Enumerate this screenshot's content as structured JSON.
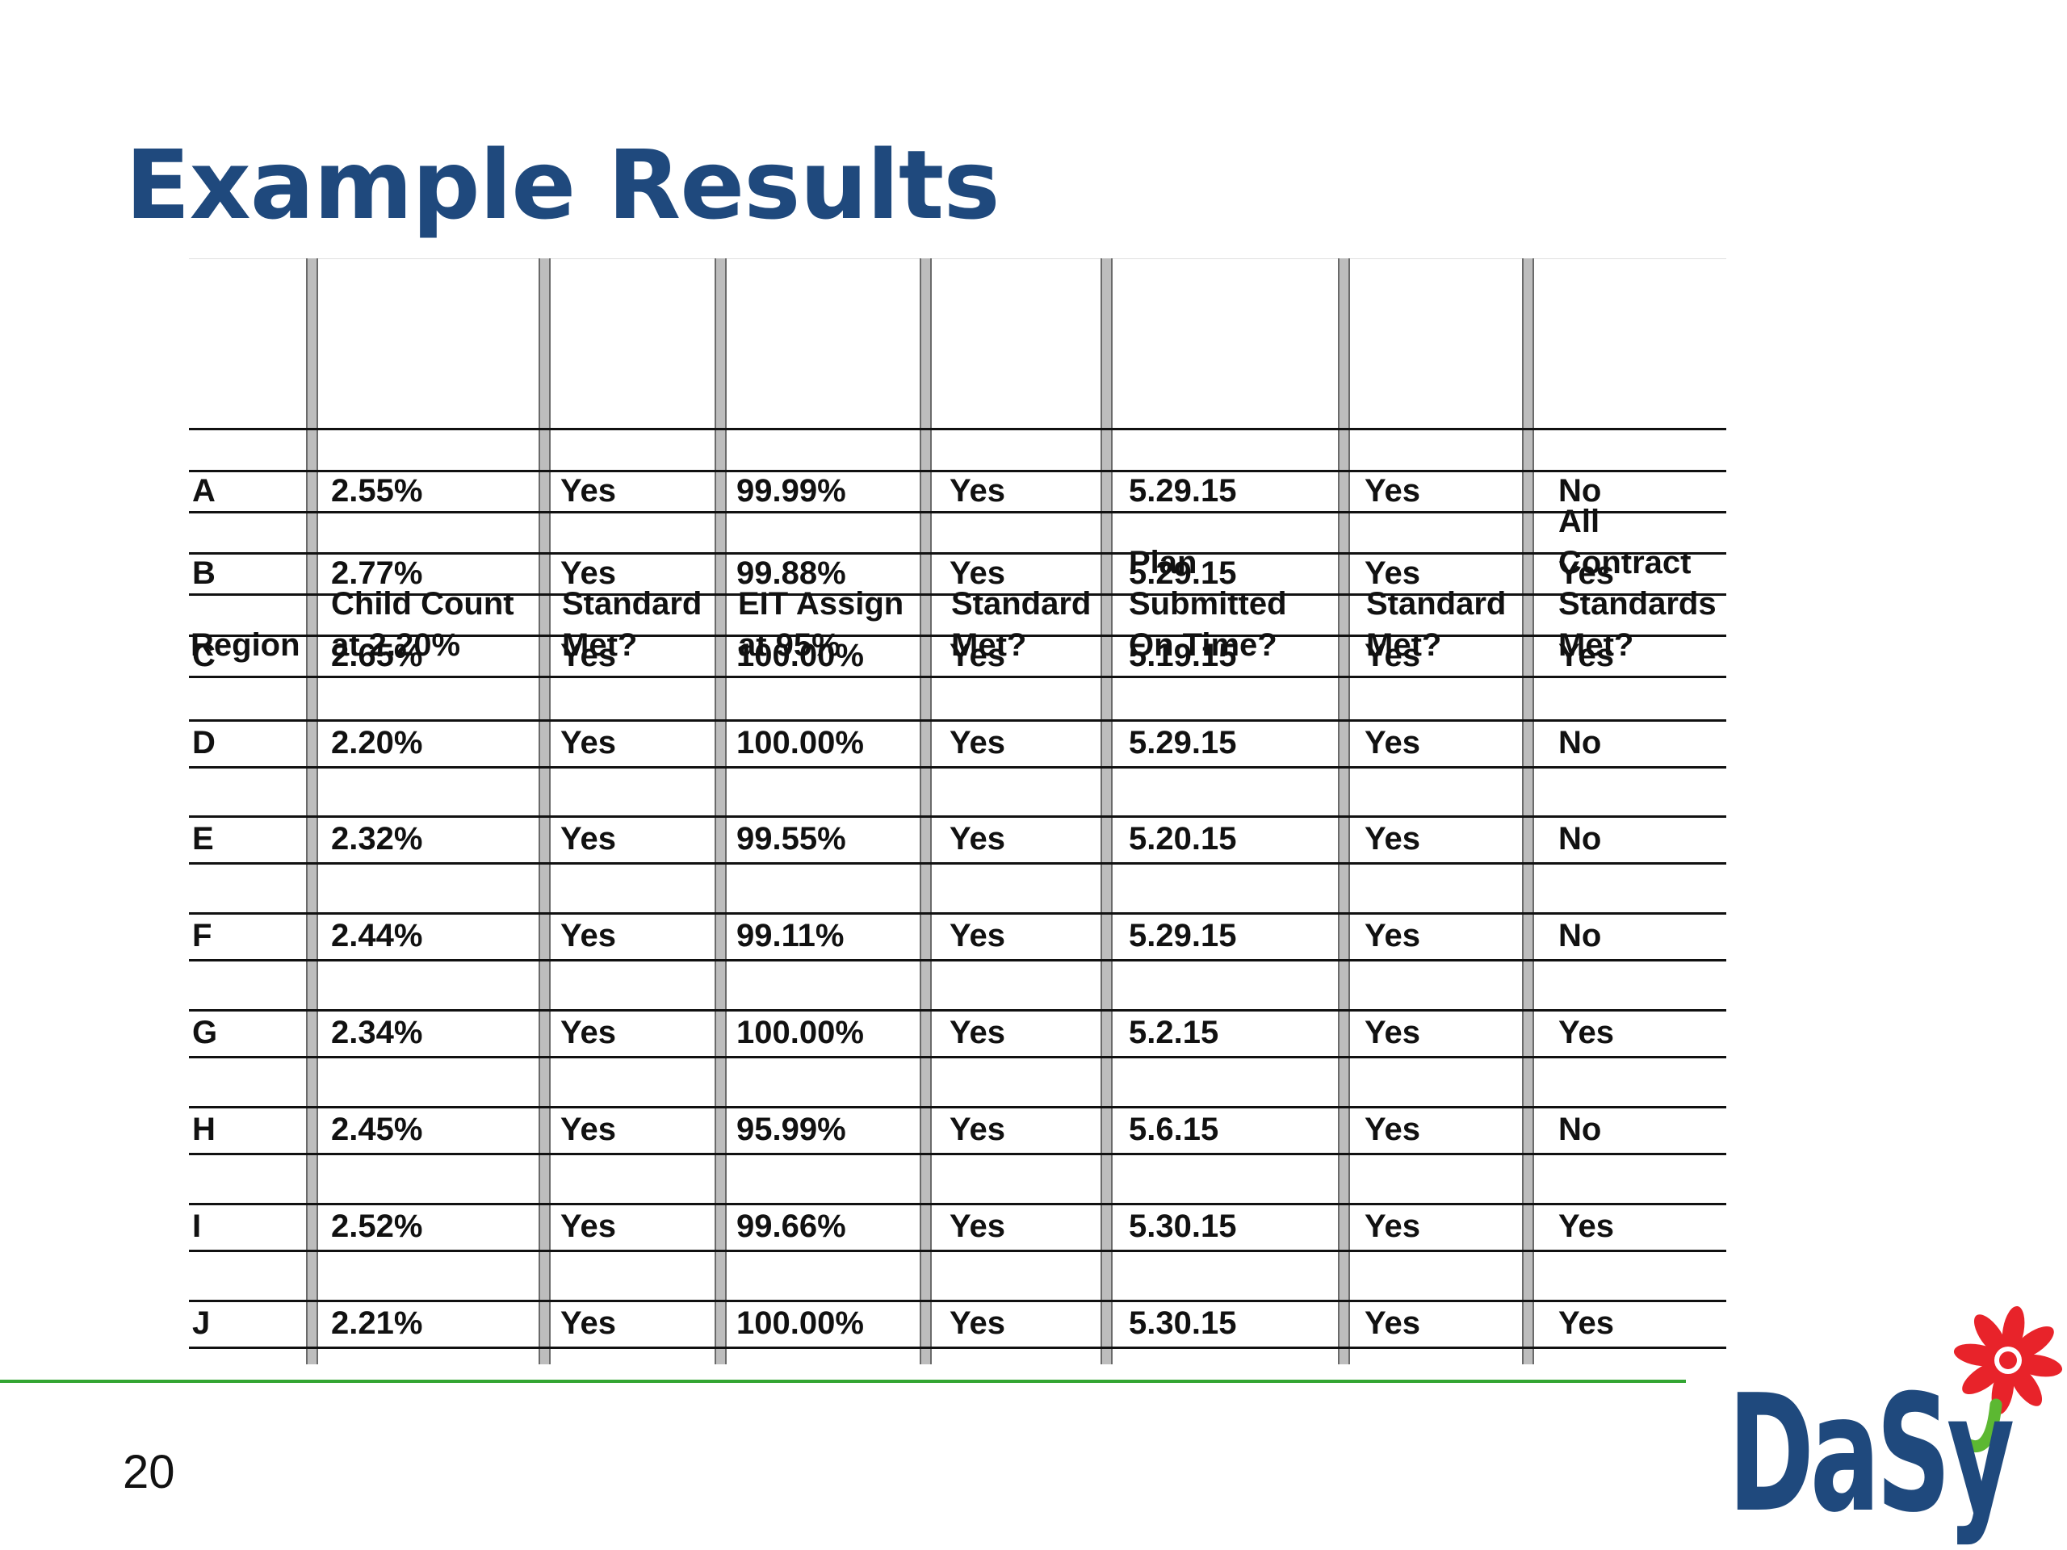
{
  "slide": {
    "title": "Example Results",
    "page_number": "20"
  },
  "table": {
    "headers": [
      "Region",
      "Child Count\nat 2.20%",
      "Standard\nMet?",
      "EIT Assign\nat 95%",
      "Standard\nMet?",
      "Plan\nSubmitted\nOn Time?",
      "Standard\nMet?",
      "All\nContract\nStandards\nMet?"
    ],
    "rows": [
      [
        "A",
        "2.55%",
        "Yes",
        "99.99%",
        "Yes",
        "5.29.15",
        "Yes",
        "No"
      ],
      [
        "B",
        "2.77%",
        "Yes",
        "99.88%",
        "Yes",
        "5.29.15",
        "Yes",
        "Yes"
      ],
      [
        "C",
        "2.65%",
        "Yes",
        "100.00%",
        "Yes",
        "5.19.15",
        "Yes",
        "Yes"
      ],
      [
        "D",
        "2.20%",
        "Yes",
        "100.00%",
        "Yes",
        "5.29.15",
        "Yes",
        "No"
      ],
      [
        "E",
        "2.32%",
        "Yes",
        "99.55%",
        "Yes",
        "5.20.15",
        "Yes",
        "No"
      ],
      [
        "F",
        "2.44%",
        "Yes",
        "99.11%",
        "Yes",
        "5.29.15",
        "Yes",
        "No"
      ],
      [
        "G",
        "2.34%",
        "Yes",
        "100.00%",
        "Yes",
        "5.2.15",
        "Yes",
        "Yes"
      ],
      [
        "H",
        "2.45%",
        "Yes",
        "95.99%",
        "Yes",
        "5.6.15",
        "Yes",
        "No"
      ],
      [
        "I",
        "2.52%",
        "Yes",
        "99.66%",
        "Yes",
        "5.30.15",
        "Yes",
        "Yes"
      ],
      [
        "J",
        "2.21%",
        "Yes",
        "100.00%",
        "Yes",
        "5.30.15",
        "Yes",
        "Yes"
      ]
    ]
  },
  "logo": {
    "text": "DaSy",
    "text_color": "#1f497d",
    "flower_color": "#e8232a",
    "stem_color": "#5cb832"
  },
  "colors": {
    "title": "#1f497d",
    "accent_line": "#33a532",
    "grid_bar": "#bdbdbd"
  }
}
